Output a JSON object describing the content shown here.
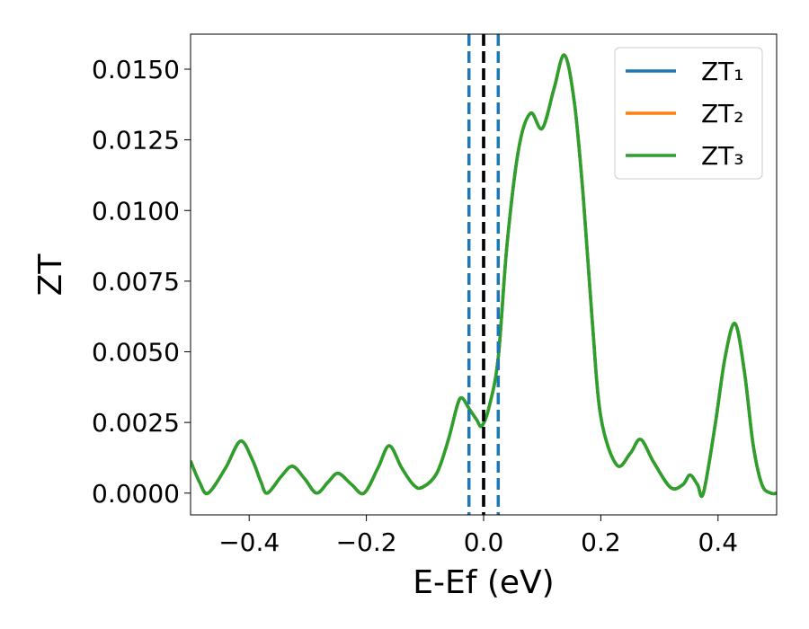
{
  "chart_data": {
    "type": "line",
    "y_label": "ZT",
    "x_label": "E-Ef (eV)",
    "x": [
      -0.5,
      -0.485,
      -0.47,
      -0.44,
      -0.415,
      -0.395,
      -0.38,
      -0.369,
      -0.345,
      -0.326,
      -0.305,
      -0.285,
      -0.265,
      -0.248,
      -0.225,
      -0.204,
      -0.18,
      -0.161,
      -0.14,
      -0.12,
      -0.105,
      -0.08,
      -0.06,
      -0.045,
      -0.037,
      -0.025,
      -0.012,
      -0.003,
      0.01,
      0.025,
      0.04,
      0.06,
      0.08,
      0.1,
      0.12,
      0.138,
      0.155,
      0.17,
      0.185,
      0.2,
      0.227,
      0.25,
      0.268,
      0.29,
      0.319,
      0.34,
      0.352,
      0.365,
      0.375,
      0.395,
      0.412,
      0.429,
      0.445,
      0.46,
      0.475,
      0.49,
      0.5
    ],
    "series": [
      {
        "name": "ZT₁",
        "color": "#1f77b4",
        "values": [
          0.00114,
          0.0004,
          0.0,
          0.0009,
          0.00184,
          0.0012,
          0.0004,
          0.0,
          0.0006,
          0.00095,
          0.0005,
          0.0,
          0.0004,
          0.0007,
          0.0003,
          0.0,
          0.0009,
          0.00168,
          0.0009,
          0.0003,
          0.0002,
          0.0007,
          0.0019,
          0.0031,
          0.00337,
          0.003,
          0.0026,
          0.00238,
          0.0031,
          0.0048,
          0.0088,
          0.0122,
          0.01344,
          0.0129,
          0.0143,
          0.0155,
          0.0138,
          0.0105,
          0.0062,
          0.0027,
          0.001,
          0.0014,
          0.0019,
          0.0011,
          0.0002,
          0.0003,
          0.00064,
          0.0003,
          0.0,
          0.0024,
          0.0048,
          0.006,
          0.0043,
          0.0017,
          0.0003,
          0.0,
          0.0
        ]
      },
      {
        "name": "ZT₂",
        "color": "#ff7f0e",
        "values": [
          0.00114,
          0.0004,
          0.0,
          0.0009,
          0.00184,
          0.0012,
          0.0004,
          0.0,
          0.0006,
          0.00095,
          0.0005,
          0.0,
          0.0004,
          0.0007,
          0.0003,
          0.0,
          0.0009,
          0.00168,
          0.0009,
          0.0003,
          0.0002,
          0.0007,
          0.0019,
          0.0031,
          0.00337,
          0.003,
          0.0026,
          0.00238,
          0.0031,
          0.0048,
          0.0088,
          0.0122,
          0.01344,
          0.0129,
          0.0143,
          0.0155,
          0.0138,
          0.0105,
          0.0062,
          0.0027,
          0.001,
          0.0014,
          0.0019,
          0.0011,
          0.0002,
          0.0003,
          0.00064,
          0.0003,
          0.0,
          0.0024,
          0.0048,
          0.006,
          0.0043,
          0.0017,
          0.0003,
          0.0,
          0.0
        ]
      },
      {
        "name": "ZT₃",
        "color": "#2ca02c",
        "values": [
          0.00114,
          0.0004,
          0.0,
          0.0009,
          0.00184,
          0.0012,
          0.0004,
          0.0,
          0.0006,
          0.00095,
          0.0005,
          0.0,
          0.0004,
          0.0007,
          0.0003,
          0.0,
          0.0009,
          0.00168,
          0.0009,
          0.0003,
          0.0002,
          0.0007,
          0.0019,
          0.0031,
          0.00337,
          0.003,
          0.0026,
          0.00238,
          0.0031,
          0.0048,
          0.0088,
          0.0122,
          0.01344,
          0.0129,
          0.0143,
          0.0155,
          0.0138,
          0.0105,
          0.0062,
          0.0027,
          0.001,
          0.0014,
          0.0019,
          0.0011,
          0.0002,
          0.0003,
          0.00064,
          0.0003,
          0.0,
          0.0024,
          0.0048,
          0.006,
          0.0043,
          0.0017,
          0.0003,
          0.0,
          0.0
        ]
      }
    ],
    "vlines": [
      {
        "x": -0.025,
        "color": "#1f77b4"
      },
      {
        "x": 0.025,
        "color": "#1f77b4"
      },
      {
        "x": 0,
        "color": "#1f77b4"
      },
      {
        "x": 0,
        "color": "#000000"
      }
    ],
    "xlim": [
      -0.5,
      0.5
    ],
    "ylim": [
      -0.00077,
      0.01624
    ],
    "xticks": [
      {
        "value": -0.4,
        "label": "−0.4"
      },
      {
        "value": -0.2,
        "label": "−0.2"
      },
      {
        "value": 0,
        "label": "0.0"
      },
      {
        "value": 0.2,
        "label": "0.2"
      },
      {
        "value": 0.4,
        "label": "0.4"
      }
    ],
    "yticks": [
      {
        "value": 0,
        "label": "0.0000"
      },
      {
        "value": 0.0025,
        "label": "0.0025"
      },
      {
        "value": 0.005,
        "label": "0.0050"
      },
      {
        "value": 0.0075,
        "label": "0.0075"
      },
      {
        "value": 0.01,
        "label": "0.0100"
      },
      {
        "value": 0.0125,
        "label": "0.0125"
      },
      {
        "value": 0.015,
        "label": "0.0150"
      }
    ],
    "legend": "upper right",
    "grid": false
  }
}
